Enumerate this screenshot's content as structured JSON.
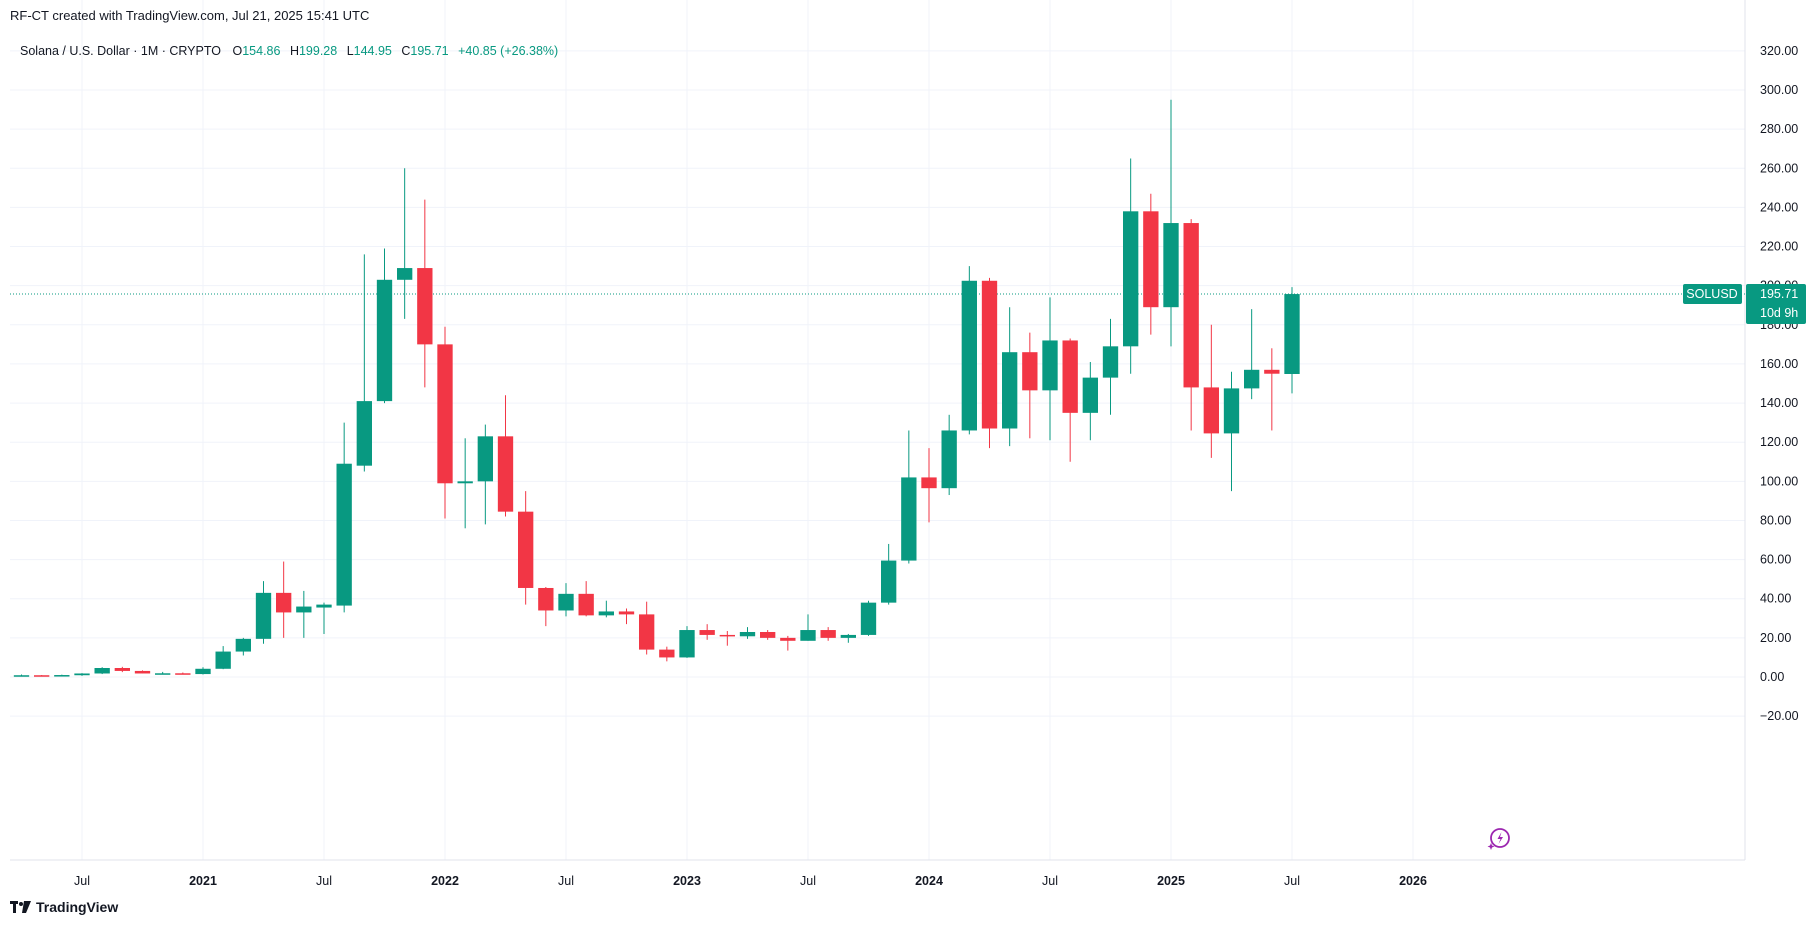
{
  "header": {
    "text": "RF-CT created with TradingView.com, Jul 21, 2025 15:41 UTC"
  },
  "legend": {
    "symbol": "Solana / U.S. Dollar · 1M · CRYPTO",
    "o_label": "O",
    "o_value": "154.86",
    "h_label": "H",
    "h_value": "199.28",
    "l_label": "L",
    "l_value": "144.95",
    "c_label": "C",
    "c_value": "195.71",
    "change": "+40.85 (+26.38%)"
  },
  "footer": {
    "brand": "TradingView"
  },
  "price_tag": {
    "symbol": "SOLUSD",
    "price": "195.71",
    "countdown": "10d 9h",
    "top_tick": "200.00"
  },
  "colors": {
    "up": "#089981",
    "down": "#f23645",
    "grid": "#f0f3fa",
    "text": "#131722",
    "icon": "#9c27b0"
  },
  "chart_data": {
    "type": "candlestick",
    "ylim": [
      -27,
      330
    ],
    "yticks": [
      "320.00",
      "300.00",
      "280.00",
      "260.00",
      "240.00",
      "220.00",
      "200.00",
      "180.00",
      "160.00",
      "140.00",
      "120.00",
      "100.00",
      "80.00",
      "60.00",
      "40.00",
      "20.00",
      "0.00",
      "−20.00"
    ],
    "ytick_values": [
      320,
      300,
      280,
      260,
      240,
      220,
      200,
      180,
      160,
      140,
      120,
      100,
      80,
      60,
      40,
      20,
      0,
      -20
    ],
    "xticks": [
      {
        "label": "Jul",
        "date": "2020-07",
        "bold": false
      },
      {
        "label": "2021",
        "date": "2021-01",
        "bold": true
      },
      {
        "label": "Jul",
        "date": "2021-07",
        "bold": false
      },
      {
        "label": "2022",
        "date": "2022-01",
        "bold": true
      },
      {
        "label": "Jul",
        "date": "2022-07",
        "bold": false
      },
      {
        "label": "2023",
        "date": "2023-01",
        "bold": true
      },
      {
        "label": "Jul",
        "date": "2023-07",
        "bold": false
      },
      {
        "label": "2024",
        "date": "2024-01",
        "bold": true
      },
      {
        "label": "Jul",
        "date": "2024-07",
        "bold": false
      },
      {
        "label": "2025",
        "date": "2025-01",
        "bold": true
      },
      {
        "label": "Jul",
        "date": "2025-07",
        "bold": false
      },
      {
        "label": "2026",
        "date": "2026-01",
        "bold": true
      }
    ],
    "last_price": 195.71,
    "candles": [
      {
        "date": "2020-04",
        "o": 0.8,
        "h": 1.3,
        "l": 0.5,
        "c": 0.9
      },
      {
        "date": "2020-05",
        "o": 0.9,
        "h": 1.0,
        "l": 0.5,
        "c": 0.6
      },
      {
        "date": "2020-06",
        "o": 0.6,
        "h": 1.2,
        "l": 0.5,
        "c": 1.0
      },
      {
        "date": "2020-07",
        "o": 0.9,
        "h": 2.0,
        "l": 0.6,
        "c": 1.8
      },
      {
        "date": "2020-08",
        "o": 1.8,
        "h": 5.0,
        "l": 1.5,
        "c": 4.6
      },
      {
        "date": "2020-09",
        "o": 4.6,
        "h": 5.2,
        "l": 2.5,
        "c": 3.1
      },
      {
        "date": "2020-10",
        "o": 3.1,
        "h": 3.4,
        "l": 1.8,
        "c": 1.8
      },
      {
        "date": "2020-11",
        "o": 1.8,
        "h": 2.6,
        "l": 1.6,
        "c": 1.9
      },
      {
        "date": "2020-12",
        "o": 1.9,
        "h": 2.3,
        "l": 1.3,
        "c": 1.5
      },
      {
        "date": "2021-01",
        "o": 1.5,
        "h": 5.0,
        "l": 1.3,
        "c": 4.2
      },
      {
        "date": "2021-02",
        "o": 4.2,
        "h": 15.8,
        "l": 4.0,
        "c": 13.0
      },
      {
        "date": "2021-03",
        "o": 13.0,
        "h": 20.0,
        "l": 11.0,
        "c": 19.5
      },
      {
        "date": "2021-04",
        "o": 19.5,
        "h": 49.0,
        "l": 17.0,
        "c": 43.0
      },
      {
        "date": "2021-05",
        "o": 43.0,
        "h": 59.0,
        "l": 20.0,
        "c": 33.0
      },
      {
        "date": "2021-06",
        "o": 33.0,
        "h": 44.0,
        "l": 20.0,
        "c": 36.0
      },
      {
        "date": "2021-07",
        "o": 35.5,
        "h": 38.0,
        "l": 22.0,
        "c": 37.0
      },
      {
        "date": "2021-08",
        "o": 36.5,
        "h": 130.0,
        "l": 33.0,
        "c": 109.0
      },
      {
        "date": "2021-09",
        "o": 108.0,
        "h": 216.0,
        "l": 105.0,
        "c": 141.0
      },
      {
        "date": "2021-10",
        "o": 141.0,
        "h": 219.0,
        "l": 140.0,
        "c": 203.0
      },
      {
        "date": "2021-11",
        "o": 203.0,
        "h": 260.0,
        "l": 183.0,
        "c": 209.0
      },
      {
        "date": "2021-12",
        "o": 209.0,
        "h": 244.0,
        "l": 148.0,
        "c": 170.0
      },
      {
        "date": "2022-01",
        "o": 170.0,
        "h": 179.0,
        "l": 81.0,
        "c": 99.0
      },
      {
        "date": "2022-02",
        "o": 99.0,
        "h": 122.0,
        "l": 76.0,
        "c": 100.0
      },
      {
        "date": "2022-03",
        "o": 100.0,
        "h": 129.0,
        "l": 78.0,
        "c": 123.0
      },
      {
        "date": "2022-04",
        "o": 123.0,
        "h": 144.0,
        "l": 82.0,
        "c": 84.5
      },
      {
        "date": "2022-05",
        "o": 84.5,
        "h": 95.0,
        "l": 37.0,
        "c": 45.5
      },
      {
        "date": "2022-06",
        "o": 45.5,
        "h": 46.0,
        "l": 26.0,
        "c": 34.0
      },
      {
        "date": "2022-07",
        "o": 34.0,
        "h": 48.0,
        "l": 31.0,
        "c": 42.5
      },
      {
        "date": "2022-08",
        "o": 42.5,
        "h": 49.0,
        "l": 31.0,
        "c": 31.5
      },
      {
        "date": "2022-09",
        "o": 31.5,
        "h": 39.0,
        "l": 30.5,
        "c": 33.5
      },
      {
        "date": "2022-10",
        "o": 33.5,
        "h": 35.0,
        "l": 27.0,
        "c": 32.0
      },
      {
        "date": "2022-11",
        "o": 32.0,
        "h": 38.5,
        "l": 11.5,
        "c": 14.0
      },
      {
        "date": "2022-12",
        "o": 14.0,
        "h": 15.5,
        "l": 8.0,
        "c": 10.0
      },
      {
        "date": "2023-01",
        "o": 10.0,
        "h": 26.0,
        "l": 9.8,
        "c": 24.0
      },
      {
        "date": "2023-02",
        "o": 24.0,
        "h": 27.0,
        "l": 19.0,
        "c": 21.5
      },
      {
        "date": "2023-03",
        "o": 21.5,
        "h": 23.5,
        "l": 16.0,
        "c": 20.8
      },
      {
        "date": "2023-04",
        "o": 20.8,
        "h": 25.5,
        "l": 19.5,
        "c": 23.0
      },
      {
        "date": "2023-05",
        "o": 23.0,
        "h": 24.0,
        "l": 19.0,
        "c": 20.0
      },
      {
        "date": "2023-06",
        "o": 20.0,
        "h": 21.0,
        "l": 13.5,
        "c": 18.5
      },
      {
        "date": "2023-07",
        "o": 18.5,
        "h": 32.0,
        "l": 18.5,
        "c": 24.0
      },
      {
        "date": "2023-08",
        "o": 24.0,
        "h": 25.5,
        "l": 18.5,
        "c": 20.0
      },
      {
        "date": "2023-09",
        "o": 20.0,
        "h": 22.0,
        "l": 17.5,
        "c": 21.5
      },
      {
        "date": "2023-10",
        "o": 21.5,
        "h": 39.0,
        "l": 21.0,
        "c": 38.0
      },
      {
        "date": "2023-11",
        "o": 38.0,
        "h": 68.0,
        "l": 37.0,
        "c": 59.5
      },
      {
        "date": "2023-12",
        "o": 59.5,
        "h": 126.0,
        "l": 58.0,
        "c": 102.0
      },
      {
        "date": "2024-01",
        "o": 102.0,
        "h": 117.0,
        "l": 79.0,
        "c": 96.5
      },
      {
        "date": "2024-02",
        "o": 96.5,
        "h": 134.0,
        "l": 93.0,
        "c": 126.0
      },
      {
        "date": "2024-03",
        "o": 126.0,
        "h": 210.0,
        "l": 124.0,
        "c": 202.5
      },
      {
        "date": "2024-04",
        "o": 202.5,
        "h": 204.0,
        "l": 117.0,
        "c": 127.0
      },
      {
        "date": "2024-05",
        "o": 127.0,
        "h": 189.0,
        "l": 118.0,
        "c": 166.0
      },
      {
        "date": "2024-06",
        "o": 166.0,
        "h": 176.0,
        "l": 122.0,
        "c": 146.5
      },
      {
        "date": "2024-07",
        "o": 146.5,
        "h": 194.0,
        "l": 121.0,
        "c": 172.0
      },
      {
        "date": "2024-08",
        "o": 172.0,
        "h": 173.0,
        "l": 110.0,
        "c": 135.0
      },
      {
        "date": "2024-09",
        "o": 135.0,
        "h": 161.0,
        "l": 121.0,
        "c": 153.0
      },
      {
        "date": "2024-10",
        "o": 153.0,
        "h": 183.0,
        "l": 134.0,
        "c": 169.0
      },
      {
        "date": "2024-11",
        "o": 169.0,
        "h": 265.0,
        "l": 155.0,
        "c": 238.0
      },
      {
        "date": "2024-12",
        "o": 238.0,
        "h": 247.0,
        "l": 175.0,
        "c": 189.0
      },
      {
        "date": "2025-01",
        "o": 189.0,
        "h": 295.0,
        "l": 169.0,
        "c": 232.0
      },
      {
        "date": "2025-02",
        "o": 232.0,
        "h": 234.0,
        "l": 126.0,
        "c": 148.0
      },
      {
        "date": "2025-03",
        "o": 148.0,
        "h": 180.0,
        "l": 112.0,
        "c": 124.5
      },
      {
        "date": "2025-04",
        "o": 124.5,
        "h": 156.0,
        "l": 95.0,
        "c": 147.5
      },
      {
        "date": "2025-05",
        "o": 147.5,
        "h": 188.0,
        "l": 142.0,
        "c": 157.0
      },
      {
        "date": "2025-06",
        "o": 157.0,
        "h": 168.0,
        "l": 126.0,
        "c": 155.0
      },
      {
        "date": "2025-07",
        "o": 154.86,
        "h": 199.28,
        "l": 144.95,
        "c": 195.71
      }
    ]
  }
}
